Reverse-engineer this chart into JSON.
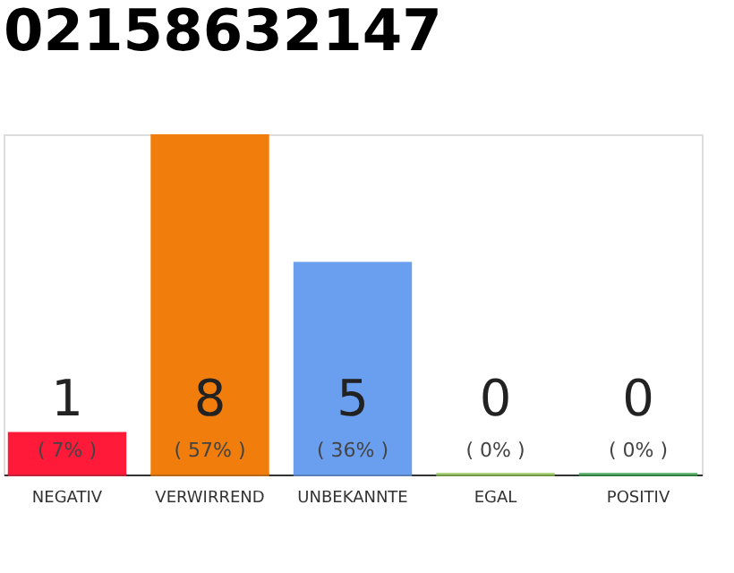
{
  "chart_data": {
    "type": "bar",
    "title": "02158632147",
    "categories": [
      "NEGATIV",
      "VERWIRREND",
      "UNBEKANNTE",
      "EGAL",
      "POSITIV"
    ],
    "values": [
      1,
      8,
      5,
      0,
      0
    ],
    "colors": [
      "#ff1a3a",
      "#f07d0c",
      "#6a9ff0",
      "#8bc34a",
      "#2e9e44"
    ],
    "ylim": [
      0,
      8
    ],
    "data_labels": true,
    "annotations": [
      "( 7% )",
      "( 57% )",
      "( 36% )",
      "( 0% )",
      "( 0% )"
    ],
    "tick_labels": "x"
  }
}
